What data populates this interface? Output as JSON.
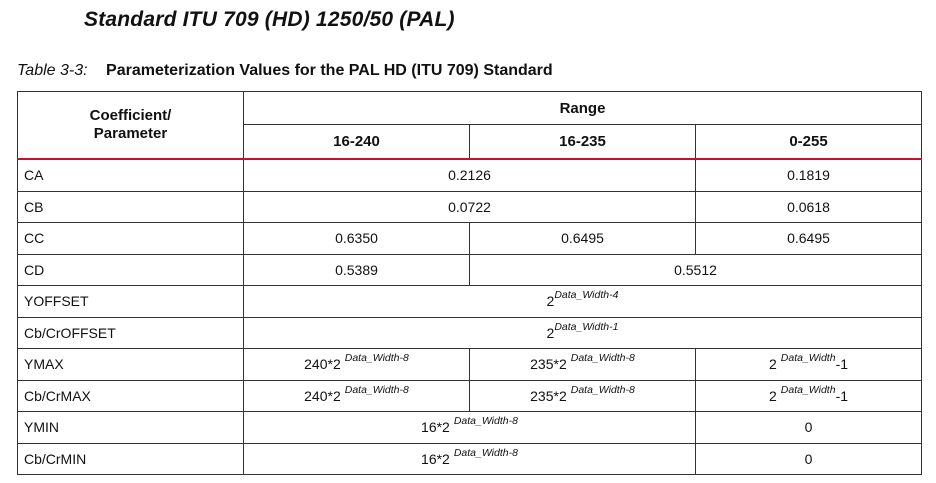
{
  "heading": "Standard ITU 709 (HD) 1250/50 (PAL)",
  "caption": {
    "label": "Table 3-3:",
    "title": "Parameterization Values for the PAL HD (ITU 709) Standard"
  },
  "table": {
    "header": {
      "coef_line1": "Coefficient/",
      "coef_line2": "Parameter",
      "range": "Range",
      "col1": "16-240",
      "col2": "16-235",
      "col3": "0-255"
    },
    "rows": {
      "ca": {
        "name": "CA",
        "v12": "0.2126",
        "v3": "0.1819"
      },
      "cb": {
        "name": "CB",
        "v12": "0.0722",
        "v3": "0.0618"
      },
      "cc": {
        "name": "CC",
        "v1": "0.6350",
        "v2": "0.6495",
        "v3": "0.6495"
      },
      "cd": {
        "name": "CD",
        "v1": "0.5389",
        "v23": "0.5512"
      },
      "yoffset": {
        "name": "YOFFSET",
        "base": "2",
        "exp": "Data_Width-4"
      },
      "cboffset": {
        "name": "Cb/CrOFFSET",
        "base": "2",
        "exp": "Data_Width-1"
      },
      "ymax": {
        "name": "YMAX",
        "v1_base": "240*2",
        "v1_exp": "Data_Width-8",
        "v2_base": "235*2",
        "v2_exp": "Data_Width-8",
        "v3_base": "2",
        "v3_exp": "Data_Width",
        "v3_tail": "-1"
      },
      "cbmax": {
        "name": "Cb/CrMAX",
        "v1_base": "240*2",
        "v1_exp": "Data_Width-8",
        "v2_base": "235*2",
        "v2_exp": "Data_Width-8",
        "v3_base": "2",
        "v3_exp": "Data_Width",
        "v3_tail": "-1"
      },
      "ymin": {
        "name": "YMIN",
        "v12_base": "16*2",
        "v12_exp": "Data_Width-8",
        "v3": "0"
      },
      "cbmin": {
        "name": "Cb/CrMIN",
        "v12_base": "16*2",
        "v12_exp": "Data_Width-8",
        "v3": "0"
      }
    }
  },
  "colors": {
    "header_rule": "#c8102e",
    "border": "#333333"
  }
}
